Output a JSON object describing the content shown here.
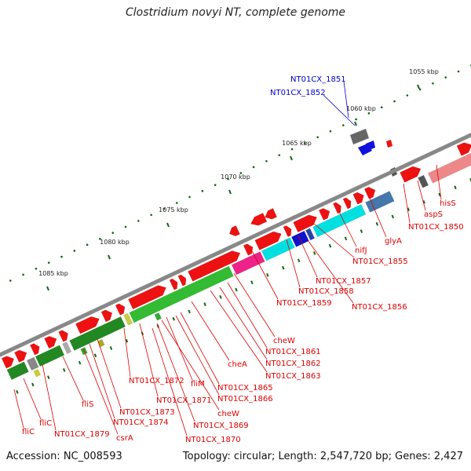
{
  "title": "Clostridium novyi NT, complete genome",
  "footer": {
    "accession": "Accession: NC_008593",
    "summary": "Topology: circular; Length: 2,547,720 bp; Genes: 2,427"
  },
  "ruler": [
    "1055 kbp",
    "1060 kbp",
    "1065 kbp",
    "1070 kbp",
    "1075 kbp",
    "1080 kbp",
    "1085 kbp"
  ],
  "colors": {
    "backbone": "#888888",
    "cds_red": "#ee1111",
    "green": "#228822",
    "cyan": "#00e0e0",
    "magenta": "#ee2288",
    "blue": "#1111dd",
    "label_red": "#dd0000",
    "label_blue": "#0000cc",
    "tick": "#116611"
  },
  "labels_blue": [
    "NT01CX_1851",
    "NT01CX_1852"
  ],
  "labels_red": [
    "hisS",
    "aspS",
    "NT01CX_1850",
    "glyA",
    "nifJ",
    "NT01CX_1855",
    "NT01CX_1857",
    "NT01CX_1858",
    "NT01CX_1856",
    "NT01CX_1859",
    "cheW",
    "NT01CX_1861",
    "NT01CX_1862",
    "NT01CX_1863",
    "cheA",
    "NT01CX_1865",
    "NT01CX_1866",
    "fliM",
    "NT01CX_1872",
    "NT01CX_1871",
    "cheW",
    "NT01CX_1869",
    "NT01CX_1870",
    "NT01CX_1873",
    "NT01CX_1874",
    "fliS",
    "NT01CX_1879",
    "csrA",
    "fliC",
    "fliC"
  ]
}
